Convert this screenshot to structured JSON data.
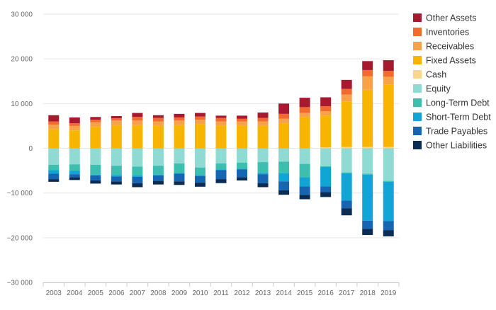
{
  "chart_data": {
    "type": "bar",
    "stacked": true,
    "title": "",
    "xlabel": "",
    "ylabel": "",
    "ylim": [
      -30000,
      30000
    ],
    "yticks": [
      30000,
      20000,
      10000,
      0,
      -10000,
      -20000,
      -30000
    ],
    "ytick_labels": [
      "30 000",
      "20 000",
      "10 000",
      "0",
      "−10 000",
      "−20 000",
      "−30 000"
    ],
    "grid": true,
    "legend_position": "right",
    "categories": [
      "2003",
      "2004",
      "2005",
      "2006",
      "2007",
      "2008",
      "2009",
      "2010",
      "2011",
      "2012",
      "2013",
      "2014",
      "2015",
      "2016",
      "2017",
      "2018",
      "2019"
    ],
    "series": [
      {
        "name": "Other Assets",
        "color": "#a6192e",
        "values": [
          1400,
          1300,
          600,
          500,
          900,
          600,
          800,
          800,
          500,
          700,
          1200,
          2300,
          2100,
          2000,
          2000,
          2000,
          2400
        ]
      },
      {
        "name": "Inventories",
        "color": "#f26a2e",
        "values": [
          700,
          600,
          600,
          500,
          800,
          800,
          700,
          700,
          800,
          600,
          800,
          1100,
          1300,
          1100,
          1300,
          1400,
          1300
        ]
      },
      {
        "name": "Receivables",
        "color": "#f7a24a",
        "values": [
          1000,
          1000,
          1000,
          1000,
          1000,
          1000,
          1000,
          1000,
          1000,
          1000,
          1000,
          1000,
          1000,
          1000,
          1500,
          3000,
          1700
        ]
      },
      {
        "name": "Fixed Assets",
        "color": "#f7b500",
        "values": [
          4300,
          4000,
          4800,
          5200,
          5200,
          5000,
          5200,
          5400,
          5000,
          5000,
          5000,
          5600,
          6900,
          7100,
          10200,
          12800,
          14000
        ]
      },
      {
        "name": "Cash",
        "color": "#fdd58a",
        "values": [
          0,
          0,
          0,
          0,
          0,
          0,
          0,
          0,
          0,
          0,
          0,
          0,
          0,
          200,
          300,
          300,
          300
        ]
      },
      {
        "name": "Equity",
        "color": "#8fdbd3",
        "values": [
          -3700,
          -3600,
          -3700,
          -3900,
          -4100,
          -3900,
          -3400,
          -4300,
          -3400,
          -3200,
          -3100,
          -3000,
          -3500,
          -4000,
          -5400,
          -5700,
          -7300
        ]
      },
      {
        "name": "Long-Term Debt",
        "color": "#3cbfae",
        "values": [
          -1200,
          -1400,
          -2200,
          -2100,
          -2000,
          -2000,
          -2100,
          -1700,
          -1300,
          -1400,
          -2400,
          -2600,
          -3000,
          -200,
          -200,
          -200,
          -200
        ]
      },
      {
        "name": "Short-Term Debt",
        "color": "#10a5d5",
        "values": [
          -800,
          -800,
          -200,
          -300,
          -300,
          -200,
          -200,
          -200,
          -200,
          -100,
          -300,
          -1800,
          -2000,
          -4300,
          -6100,
          -10300,
          -8800
        ]
      },
      {
        "name": "Trade Payables",
        "color": "#1565b3",
        "values": [
          -1200,
          -700,
          -1100,
          -1100,
          -1400,
          -1200,
          -1700,
          -1500,
          -2000,
          -1800,
          -2000,
          -2000,
          -1900,
          -1300,
          -1700,
          -1800,
          -2000
        ]
      },
      {
        "name": "Other Liabilities",
        "color": "#0b2d55",
        "values": [
          -600,
          -600,
          -700,
          -700,
          -900,
          -800,
          -800,
          -900,
          -900,
          -700,
          -900,
          -1000,
          -1000,
          -1100,
          -1600,
          -1400,
          -1400
        ]
      }
    ]
  }
}
